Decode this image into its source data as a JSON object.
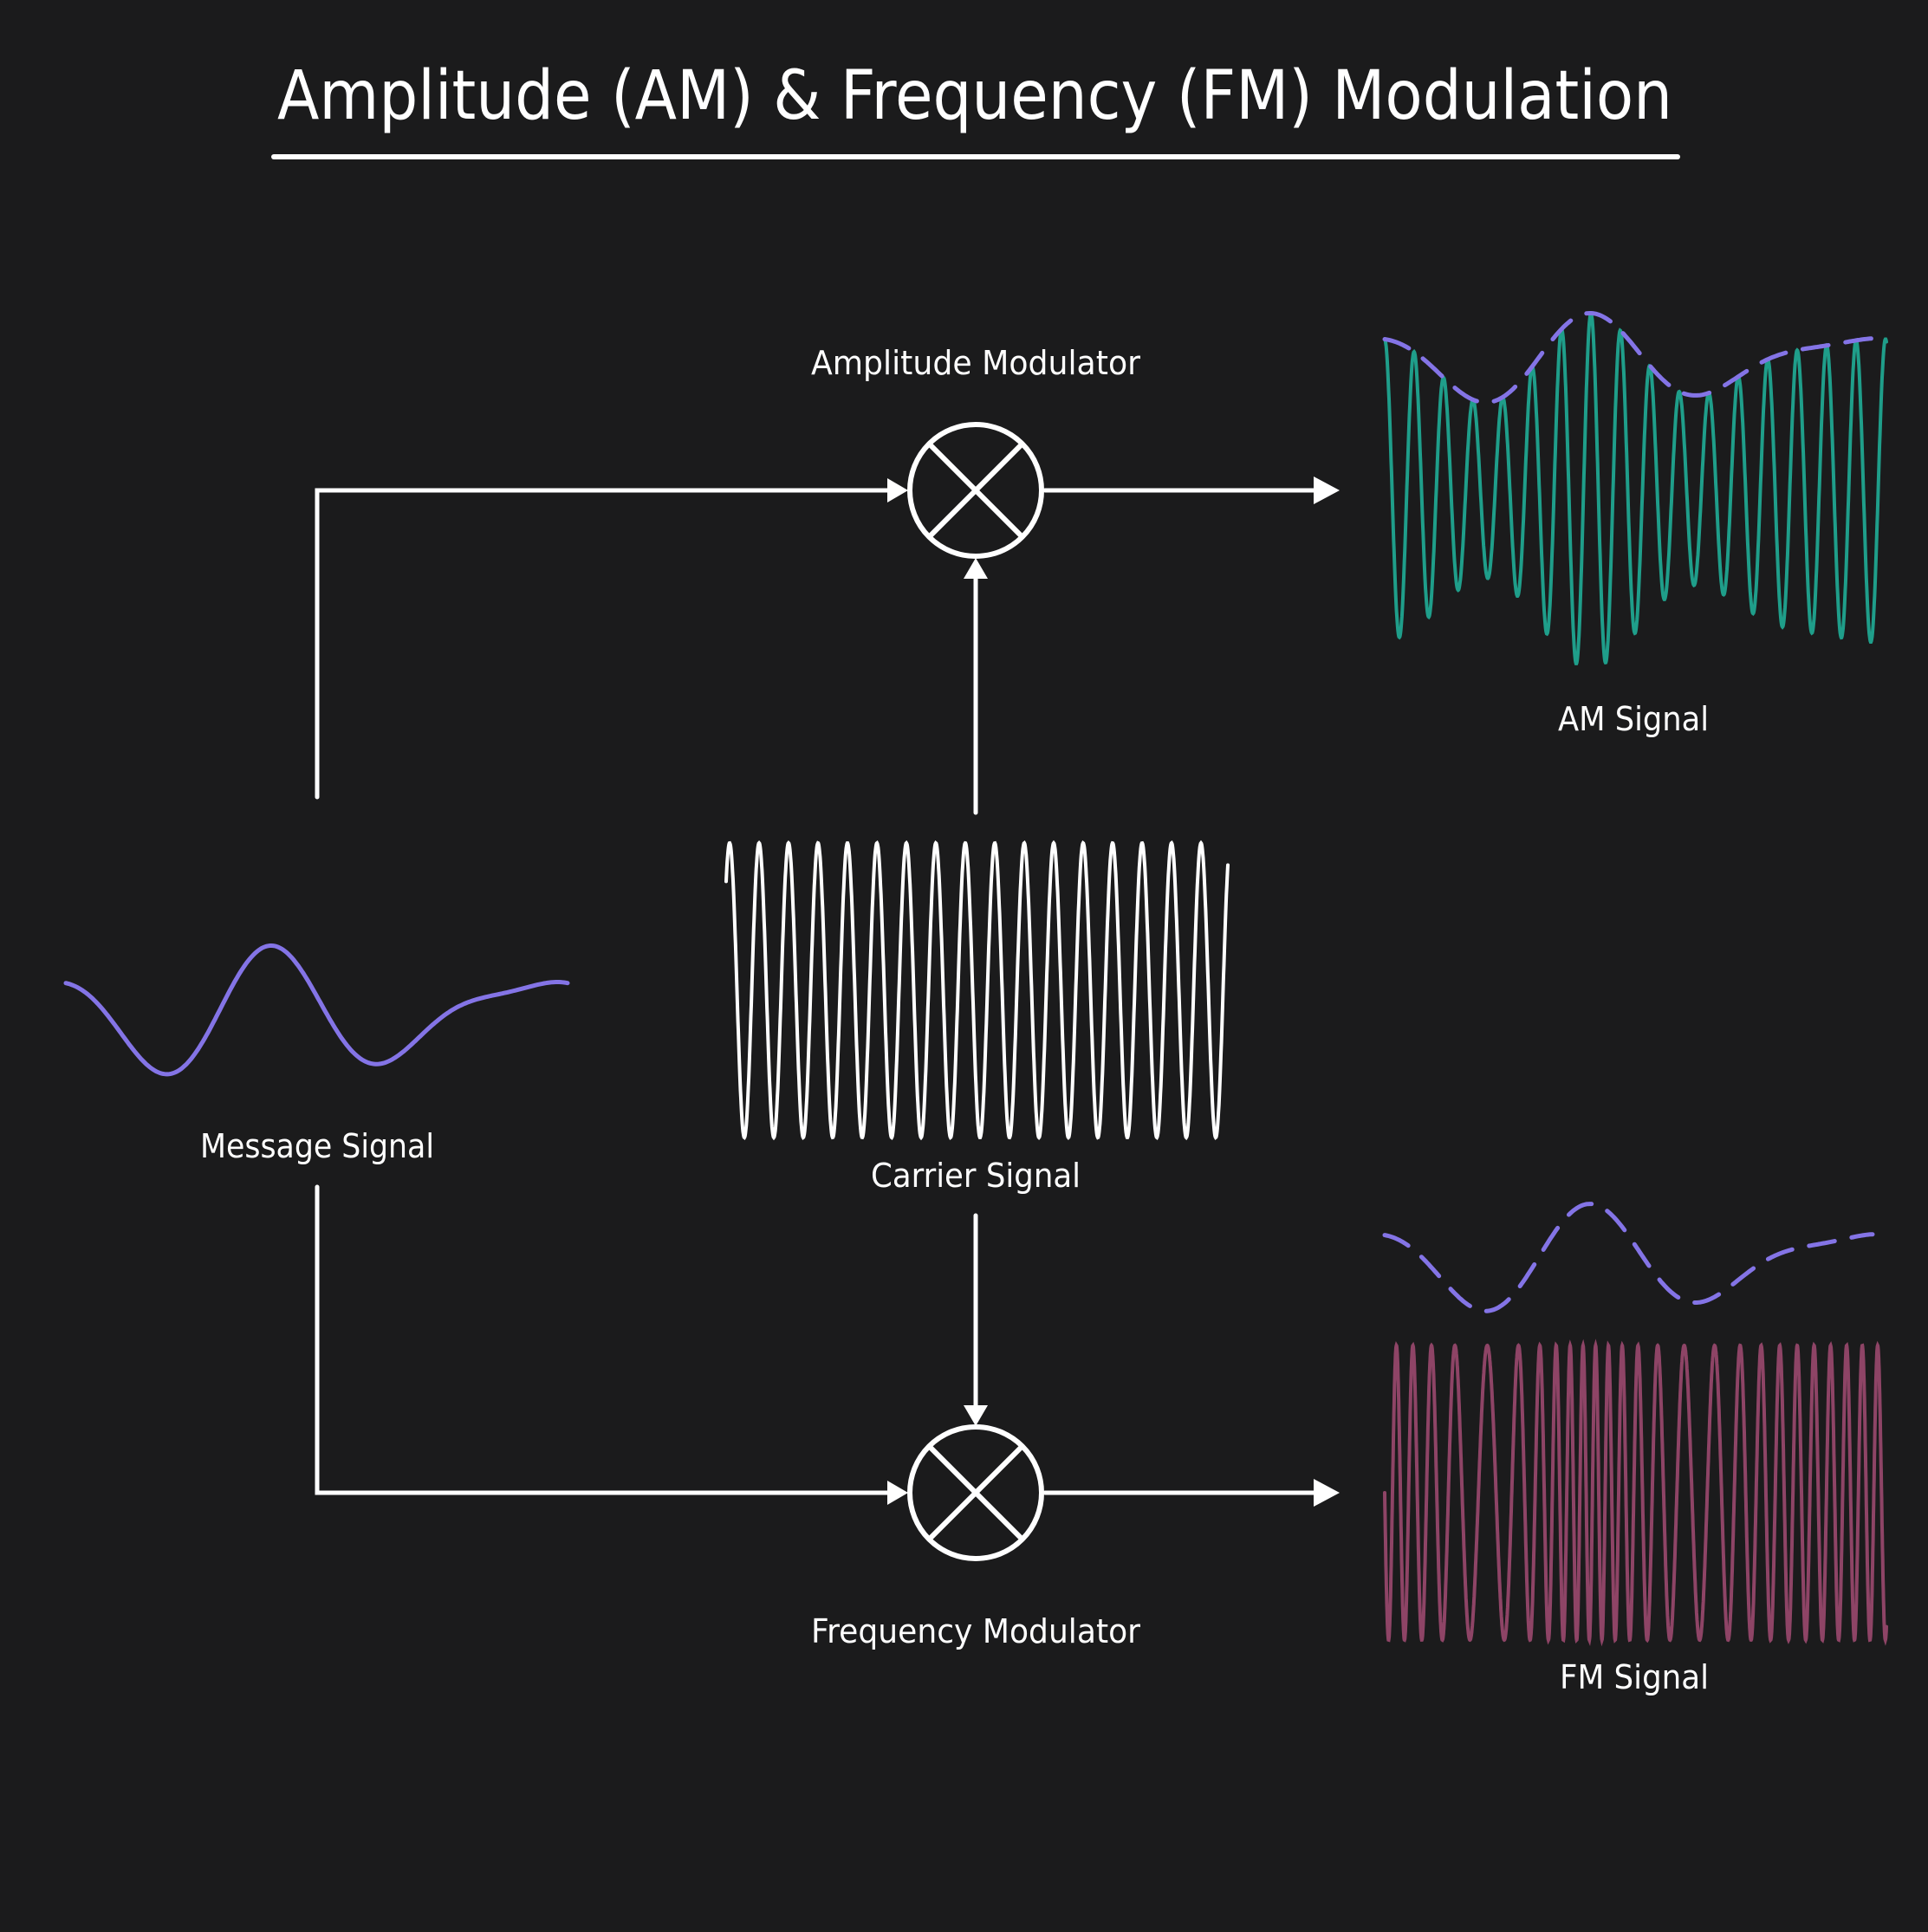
{
  "diagram": {
    "title": "Amplitude (AM) & Frequency (FM) Modulation",
    "labels": {
      "amplitude_modulator": "Amplitude Modulator",
      "frequency_modulator": "Frequency Modulator",
      "message_signal": "Message Signal",
      "carrier_signal": "Carrier Signal",
      "am_signal": "AM Signal",
      "fm_signal": "FM Signal"
    },
    "colors": {
      "background": "#1b1b1c",
      "foreground": "#ffffff",
      "message": "#8474e6",
      "am": "#1f9e8a",
      "fm": "#8e4466"
    },
    "icons": {
      "modulator": "multiplier-circle-icon",
      "arrow": "arrow-head-icon"
    }
  }
}
